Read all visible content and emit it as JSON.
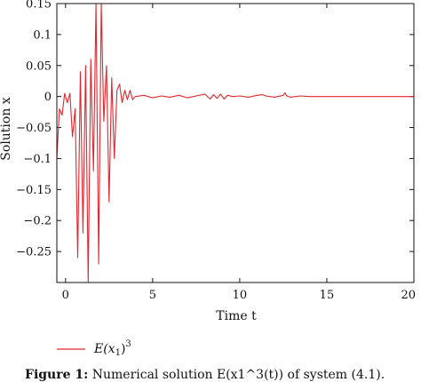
{
  "chart_data": {
    "type": "line",
    "title": "",
    "xlabel": "Time t",
    "ylabel": "Solution x",
    "xlim": [
      -0.5,
      20
    ],
    "ylim": [
      -0.3,
      0.15
    ],
    "xticks": [
      0,
      5,
      10,
      15,
      20
    ],
    "yticks": [
      0.15,
      0.1,
      0.05,
      0,
      -0.05,
      -0.1,
      -0.15,
      -0.2,
      -0.25
    ],
    "xtick_labels": [
      "0",
      "5",
      "10",
      "15",
      "20"
    ],
    "ytick_labels": [
      "0.15",
      "0.1",
      "0.05",
      "0",
      "−0.05",
      "−0.1",
      "−0.15",
      "−0.2",
      "−0.25"
    ],
    "grid": false,
    "legend_position": "bottom-left",
    "color": "#e0272f",
    "series": [
      {
        "name": "E(x1)^3",
        "x": [
          -0.5,
          -0.35,
          -0.2,
          -0.05,
          0.1,
          0.25,
          0.4,
          0.55,
          0.7,
          0.85,
          1.0,
          1.15,
          1.3,
          1.45,
          1.6,
          1.75,
          1.9,
          2.05,
          2.2,
          2.35,
          2.5,
          2.65,
          2.8,
          2.95,
          3.1,
          3.25,
          3.4,
          3.55,
          3.7,
          3.85,
          4.0,
          4.5,
          5.0,
          5.5,
          6.0,
          6.5,
          7.0,
          7.5,
          8.0,
          8.3,
          8.5,
          8.7,
          8.9,
          9.1,
          9.3,
          9.6,
          10.0,
          10.5,
          11.0,
          11.3,
          11.5,
          12.0,
          12.5,
          12.6,
          12.7,
          12.9,
          13.5,
          14.0,
          15.0,
          16.0,
          17.0,
          18.0,
          19.0,
          20.0
        ],
        "y": [
          -0.1,
          -0.02,
          -0.03,
          0.005,
          -0.01,
          0.005,
          -0.065,
          -0.02,
          -0.26,
          0.04,
          -0.22,
          0.05,
          -0.3,
          0.06,
          -0.12,
          0.15,
          -0.27,
          0.15,
          -0.04,
          0.05,
          -0.17,
          0.03,
          -0.1,
          0.01,
          0.02,
          -0.01,
          0.01,
          -0.005,
          0.01,
          -0.005,
          0.0,
          0.002,
          -0.002,
          0.001,
          -0.001,
          0.002,
          -0.002,
          0.001,
          0.004,
          -0.004,
          0.003,
          -0.003,
          0.004,
          -0.004,
          0.002,
          0.0,
          0.001,
          -0.001,
          0.002,
          0.003,
          0.001,
          -0.001,
          0.002,
          0.006,
          0.001,
          -0.001,
          0.001,
          0.0,
          0.0,
          0.0,
          0.0,
          0.0,
          0.0,
          0.0
        ]
      }
    ]
  },
  "legend": {
    "label_main": "E(x",
    "label_sub": "1",
    "label_close": ")",
    "label_sup": "3"
  },
  "caption": {
    "prefix": "Figure 1:",
    "text": " Numerical solution E(x1^3(t)) of system (4.1)."
  }
}
